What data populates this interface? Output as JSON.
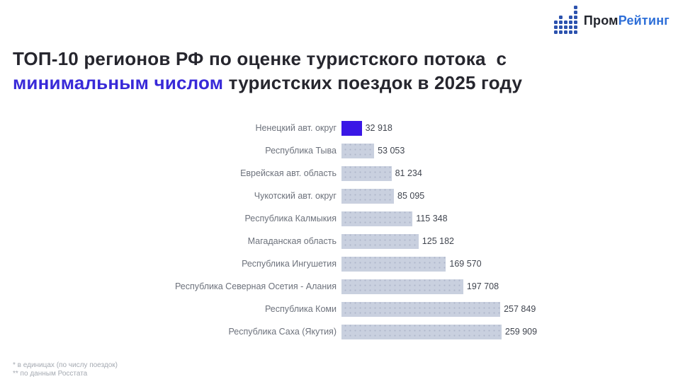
{
  "logo": {
    "text_dark": "Пром",
    "text_accent": "Рейтинг",
    "accent_color": "#2E6FD8",
    "icon": "dot-bar-chart-icon",
    "icon_color": "#2C52AE",
    "icon_columns": [
      3,
      4,
      3,
      4,
      6
    ]
  },
  "title": {
    "line1": "ТОП-10 регионов РФ по оценке туристского потока  с",
    "line2_highlight": "минимальным числом",
    "line2_rest": " туристских поездок в 2025 году",
    "highlight_color": "#3829D8",
    "text_color": "#26262E"
  },
  "chart_data": {
    "type": "bar",
    "orientation": "horizontal",
    "title": "ТОП-10 регионов РФ по оценке туристского потока с минимальным числом туристских поездок в 2025 году",
    "categories": [
      "Ненецкий авт. округ",
      "Республика Тыва",
      "Еврейская авт. область",
      "Чукотский авт. округ",
      "Республика Калмыкия",
      "Магаданская область",
      "Республика Ингушетия",
      "Республика Северная Осетия - Алания",
      "Республика Коми",
      "Республика Саха (Якутия)"
    ],
    "values": [
      32918,
      53053,
      81234,
      85095,
      115348,
      125182,
      169570,
      197708,
      257849,
      259909
    ],
    "value_labels": [
      "32 918",
      "53 053",
      "81 234",
      "85 095",
      "115 348",
      "125 182",
      "169 570",
      "197 708",
      "257 849",
      "259 909"
    ],
    "highlight_index": 0,
    "bar_color": "#C9D0DF",
    "highlight_color": "#3A17E6",
    "xlim": [
      0,
      260000
    ],
    "grid": false,
    "legend": false
  },
  "footnotes": [
    "* в единицах (по числу поездок)",
    "** по данным Росстата"
  ]
}
